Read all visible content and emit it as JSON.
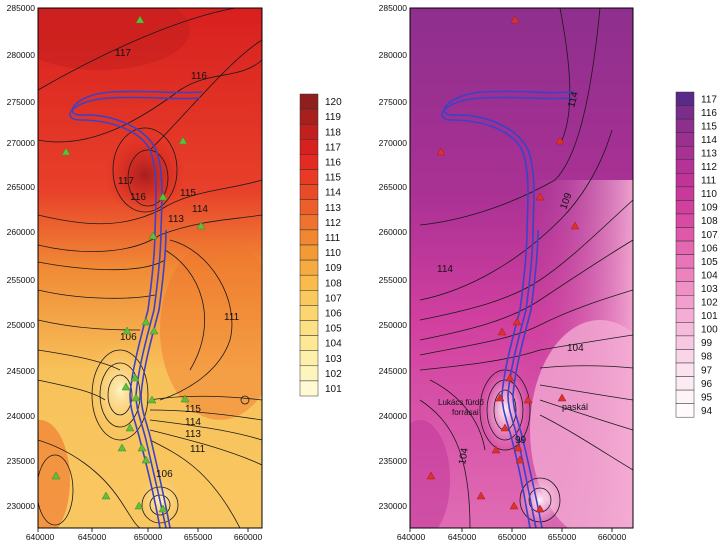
{
  "maps": [
    {
      "id": "left",
      "y_ticks": [
        "285000",
        "280000",
        "275000",
        "270000",
        "265000",
        "260000",
        "255000",
        "250000",
        "245000",
        "240000",
        "235000",
        "230000"
      ],
      "x_ticks": [
        "640000",
        "645000",
        "650000",
        "655000",
        "660000"
      ],
      "contour_labels": [
        "117",
        "116",
        "117",
        "116",
        "115",
        "114",
        "113",
        "111",
        "106",
        "115",
        "114",
        "113",
        "111",
        "106"
      ],
      "legend": [
        "120",
        "119",
        "118",
        "117",
        "116",
        "115",
        "114",
        "113",
        "112",
        "111",
        "110",
        "109",
        "108",
        "107",
        "106",
        "105",
        "104",
        "103",
        "102",
        "101"
      ],
      "legend_colors": [
        "#8e1f1d",
        "#a8201e",
        "#c21f1f",
        "#d8201f",
        "#e52a24",
        "#e83a25",
        "#ea4b27",
        "#ed5f2a",
        "#ef732d",
        "#f18831",
        "#f39a36",
        "#f5ab3f",
        "#f8bb4c",
        "#f9c95d",
        "#fbd670",
        "#fce083",
        "#fde896",
        "#feefaa",
        "#fef5be",
        "#fffad3"
      ],
      "markers": "green triangle"
    },
    {
      "id": "right",
      "y_ticks": [
        "285000",
        "280000",
        "275000",
        "270000",
        "265000",
        "260000",
        "255000",
        "250000",
        "245000",
        "240000",
        "235000",
        "230000"
      ],
      "x_ticks": [
        "640000",
        "645000",
        "650000",
        "655000",
        "660000"
      ],
      "contour_labels": [
        "114",
        "114",
        "109",
        "104",
        "104",
        "99"
      ],
      "annotations": [
        "Lukács fürdő forrásai",
        "paskál"
      ],
      "legend": [
        "117",
        "116",
        "115",
        "114",
        "113",
        "112",
        "111",
        "110",
        "109",
        "108",
        "107",
        "106",
        "105",
        "104",
        "103",
        "102",
        "101",
        "100",
        "99",
        "98",
        "97",
        "96",
        "95",
        "94"
      ],
      "legend_colors": [
        "#5a2a8a",
        "#7b2d8b",
        "#8e2f8e",
        "#9c3091",
        "#a93194",
        "#b53396",
        "#c03498",
        "#c9389b",
        "#d13f9f",
        "#d94aa4",
        "#df58aa",
        "#e467b1",
        "#e875b8",
        "#ec83bf",
        "#ef91c6",
        "#f29fcd",
        "#f4add4",
        "#f6bbdb",
        "#f8c8e2",
        "#fad5e8",
        "#fce1ee",
        "#fdebf3",
        "#fef4f8",
        "#fffbfd"
      ],
      "markers": "red triangle"
    }
  ]
}
